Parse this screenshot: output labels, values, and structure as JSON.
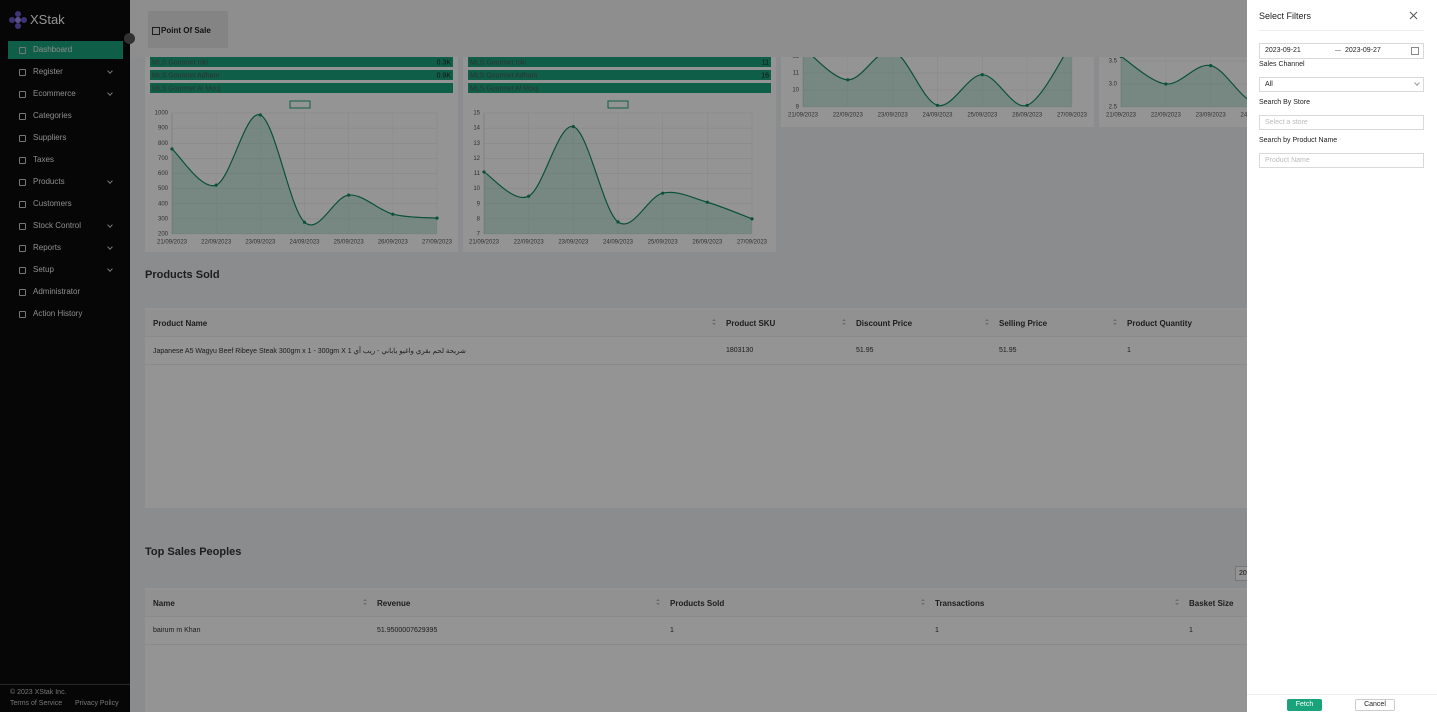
{
  "sidebar": {
    "brand": "XStak",
    "items": [
      {
        "label": "Dashboard",
        "active": true
      },
      {
        "label": "Register",
        "expandable": true
      },
      {
        "label": "Ecommerce",
        "expandable": true
      },
      {
        "label": "Categories"
      },
      {
        "label": "Suppliers"
      },
      {
        "label": "Taxes"
      },
      {
        "label": "Products",
        "expandable": true
      },
      {
        "label": "Customers"
      },
      {
        "label": "Stock Control",
        "expandable": true
      },
      {
        "label": "Reports",
        "expandable": true
      },
      {
        "label": "Setup",
        "expandable": true
      },
      {
        "label": "Administrator"
      },
      {
        "label": "Action History"
      }
    ],
    "copyright": "© 2023 XStak Inc.",
    "links": [
      "Terms of Service",
      "Privacy Policy"
    ]
  },
  "header": {
    "button": "Point Of Sale"
  },
  "charts": [
    {
      "rows": [
        {
          "name": "MLS Gourmet Iski",
          "value": "0.3K"
        },
        {
          "name": "MLS Gourmet Adham",
          "value": "0.9K"
        },
        {
          "name": "MLS Gourmet Al Mouj"
        }
      ],
      "categories": [
        "21/09/2023",
        "22/09/2023",
        "23/09/2023",
        "24/09/2023",
        "25/09/2023",
        "26/09/2023",
        "27/09/2023"
      ],
      "values": [
        762,
        523,
        987,
        278,
        457,
        331,
        305
      ],
      "ylim": [
        200,
        1000
      ],
      "yticks": [
        200,
        300,
        400,
        500,
        600,
        700,
        800,
        900,
        1000
      ]
    },
    {
      "rows": [
        {
          "name": "MLS Gourmet Iski",
          "value": 11
        },
        {
          "name": "MLS Gourmet Adham",
          "value": 16
        },
        {
          "name": "MLS Gourmet Al Mouj"
        }
      ],
      "categories": [
        "21/09/2023",
        "22/09/2023",
        "23/09/2023",
        "24/09/2023",
        "25/09/2023",
        "26/09/2023",
        "27/09/2023"
      ],
      "values": [
        11.1,
        9.5,
        14.1,
        7.8,
        9.7,
        9.1,
        8.0
      ],
      "ylim": [
        7,
        15
      ],
      "yticks": [
        7,
        8,
        9,
        10,
        11,
        12,
        13,
        14,
        15
      ]
    },
    {
      "categories": [
        "21/09/2023",
        "22/09/2023",
        "23/09/2023",
        "24/09/2023",
        "25/09/2023",
        "26/09/2023",
        "27/09/2023"
      ],
      "values": [
        12.5,
        10.6,
        12.3,
        9.1,
        10.9,
        9.1,
        12.8
      ],
      "ylim": [
        9,
        13
      ],
      "yticks": [
        9,
        10,
        11,
        12,
        13
      ]
    },
    {
      "categories": [
        "21/09/2023",
        "22/09/2023",
        "23/09/2023",
        "24/09/2023",
        "25/09/2023",
        "26/09/2023",
        "27/09/2023"
      ],
      "values": [
        3.6,
        3.0,
        3.4,
        2.6,
        3.2,
        2.9,
        3.3
      ],
      "ylim": [
        2.5,
        3.75
      ],
      "yticks": [
        {
          "value": 2.5,
          "label": "2.5"
        },
        {
          "value": 3,
          "label": "3.0"
        },
        {
          "value": 3.5,
          "label": "3.5"
        }
      ]
    }
  ],
  "products_sold": {
    "title": "Products Sold",
    "columns": [
      "Product Name",
      "Product SKU",
      "Discount Price",
      "Selling Price",
      "Product Quantity"
    ],
    "rows": [
      [
        "Japanese A5 Wagyu Beef Ribeye Steak 300gm x 1 - 300gm X 1 شريحة لحم بقري واغيو ياباني - ريب آي",
        "1803130",
        "51.95",
        "51.95",
        "1"
      ]
    ]
  },
  "top_sales": {
    "title": "Top Sales Peoples",
    "page_size": "20",
    "columns": [
      "Name",
      "Revenue",
      "Products Sold",
      "Transactions",
      "Basket Size"
    ],
    "rows": [
      [
        "bairum m Khan",
        "51.9500007629395",
        "1",
        "1",
        "1"
      ]
    ]
  },
  "drawer": {
    "title": "Select Filters",
    "date_from": "2023-09-21",
    "date_to": "2023-09-27",
    "fields": [
      {
        "label": "Sales Channel",
        "value": "All"
      },
      {
        "label": "Search By Store",
        "placeholder": "Select a store"
      },
      {
        "label": "Search by Product Name",
        "placeholder": "Product Name"
      }
    ],
    "fetch": "Fetch",
    "cancel": "Cancel"
  }
}
